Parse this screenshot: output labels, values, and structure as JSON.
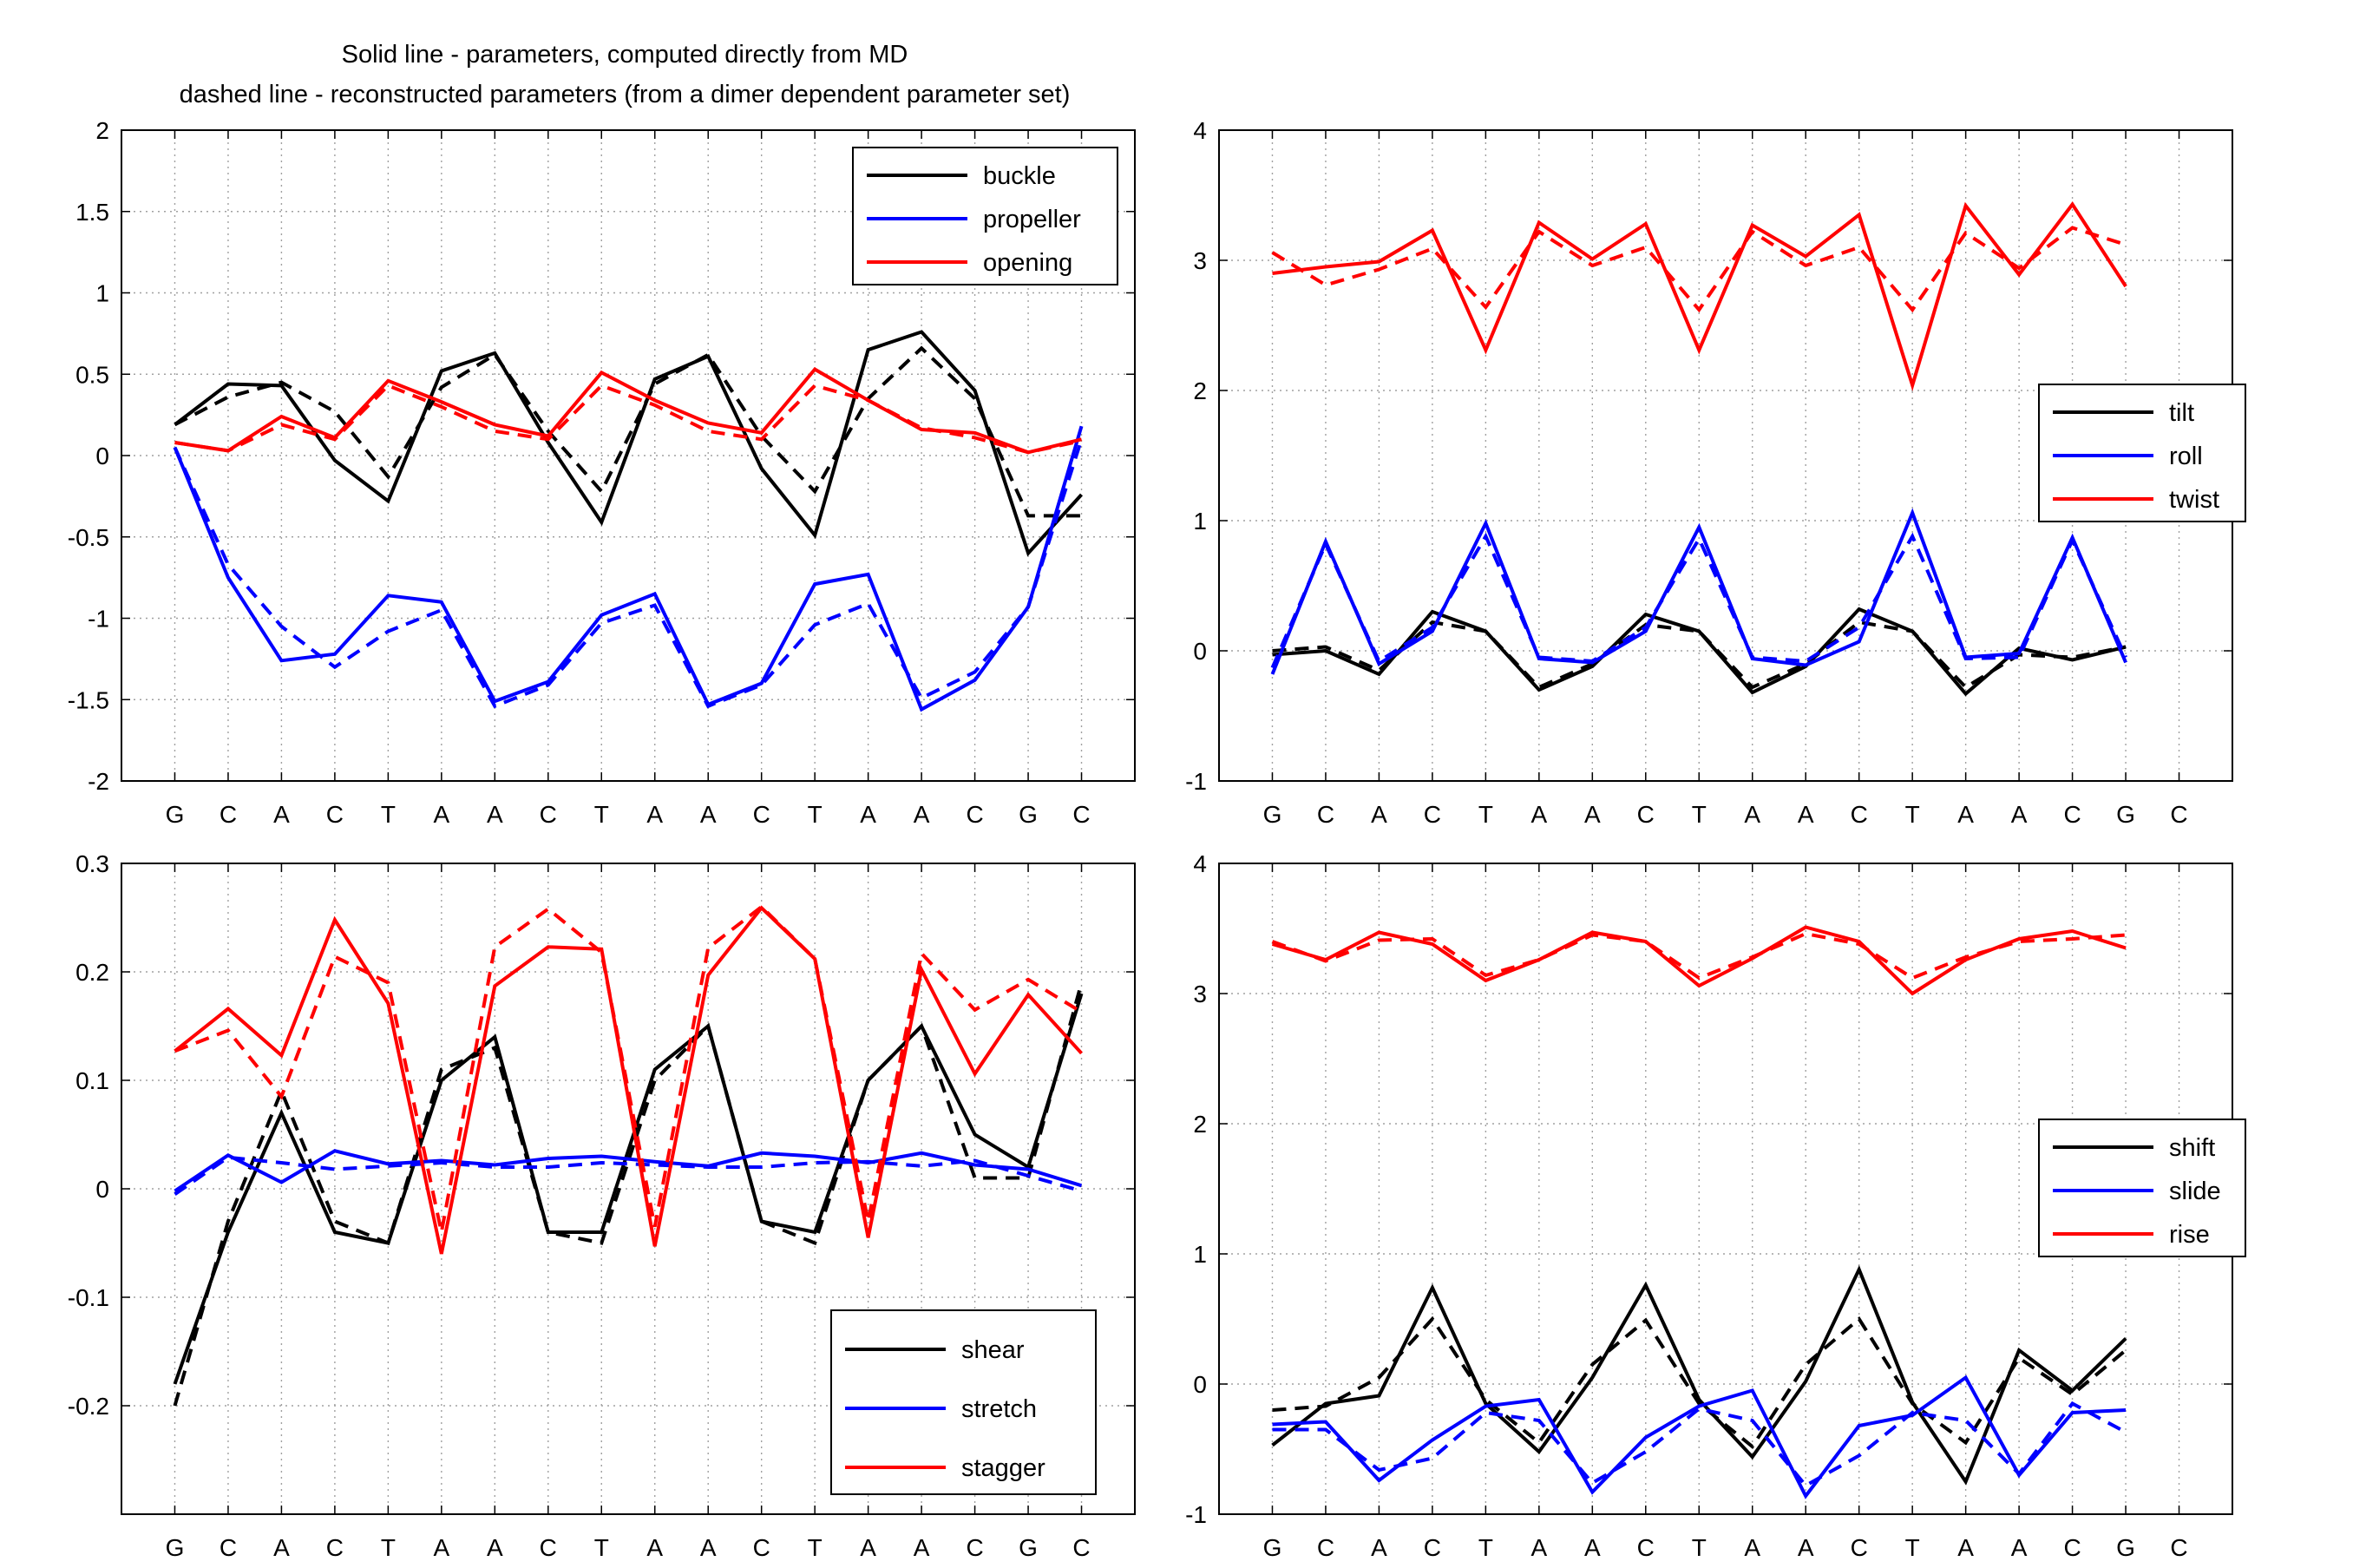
{
  "title_lines": [
    "Solid line - parameters, computed directly from MD",
    "dashed line - reconstructed parameters (from a dimer dependent parameter set)"
  ],
  "sequence": [
    "G",
    "C",
    "A",
    "C",
    "T",
    "A",
    "A",
    "C",
    "T",
    "A",
    "A",
    "C",
    "T",
    "A",
    "A",
    "C",
    "G",
    "C"
  ],
  "colors": {
    "black": "#000000",
    "blue": "#0000ff",
    "red": "#ff0000",
    "grid": "#a0a0a0"
  },
  "chart_data": [
    {
      "type": "line",
      "ylim": [
        -2,
        2
      ],
      "yticks": [
        -2,
        -1.5,
        -1,
        -0.5,
        0,
        0.5,
        1,
        1.5,
        2
      ],
      "yticklabels": [
        "-2",
        "-1.5",
        "-1",
        "-0.5",
        "0",
        "0.5",
        "1",
        "1.5",
        "2"
      ],
      "x": [
        1,
        2,
        3,
        4,
        5,
        6,
        7,
        8,
        9,
        10,
        11,
        12,
        13,
        14,
        15,
        16,
        17,
        18
      ],
      "categories": [
        "G",
        "C",
        "A",
        "C",
        "T",
        "A",
        "A",
        "C",
        "T",
        "A",
        "A",
        "C",
        "T",
        "A",
        "A",
        "C",
        "G",
        "C"
      ],
      "legend": "top-right",
      "grid": true,
      "series": [
        {
          "name": "buckle",
          "color": "#000000",
          "style": "solid",
          "values": [
            0.19,
            0.44,
            0.43,
            -0.03,
            -0.28,
            0.52,
            0.63,
            0.08,
            -0.41,
            0.47,
            0.61,
            -0.08,
            -0.49,
            0.65,
            0.76,
            0.4,
            -0.6,
            -0.24
          ]
        },
        {
          "name": "",
          "color": "#000000",
          "style": "dashed",
          "values": [
            0.19,
            0.36,
            0.45,
            0.27,
            -0.13,
            0.42,
            0.62,
            0.15,
            -0.22,
            0.44,
            0.62,
            0.12,
            -0.22,
            0.35,
            0.66,
            0.35,
            -0.37,
            -0.37
          ]
        },
        {
          "name": "propeller",
          "color": "#0000ff",
          "style": "solid",
          "values": [
            0.05,
            -0.75,
            -1.26,
            -1.22,
            -0.86,
            -0.9,
            -1.51,
            -1.39,
            -0.98,
            -0.85,
            -1.53,
            -1.4,
            -0.79,
            -0.73,
            -1.56,
            -1.38,
            -0.93,
            0.18
          ]
        },
        {
          "name": "",
          "color": "#0000ff",
          "style": "dashed",
          "values": [
            0.05,
            -0.67,
            -1.05,
            -1.3,
            -1.08,
            -0.95,
            -1.54,
            -1.41,
            -1.03,
            -0.92,
            -1.54,
            -1.41,
            -1.04,
            -0.91,
            -1.49,
            -1.33,
            -0.93,
            0.1
          ]
        },
        {
          "name": "opening",
          "color": "#ff0000",
          "style": "solid",
          "values": [
            0.08,
            0.03,
            0.24,
            0.11,
            0.46,
            0.33,
            0.19,
            0.12,
            0.51,
            0.34,
            0.2,
            0.14,
            0.53,
            0.34,
            0.16,
            0.14,
            0.02,
            0.1
          ]
        },
        {
          "name": "",
          "color": "#ff0000",
          "style": "dashed",
          "values": [
            0.08,
            0.03,
            0.19,
            0.1,
            0.43,
            0.3,
            0.15,
            0.1,
            0.43,
            0.31,
            0.15,
            0.1,
            0.43,
            0.34,
            0.17,
            0.11,
            0.02,
            0.09
          ]
        }
      ]
    },
    {
      "type": "line",
      "ylim": [
        -1,
        4
      ],
      "yticks": [
        -1,
        0,
        1,
        2,
        3,
        4
      ],
      "yticklabels": [
        "-1",
        "0",
        "1",
        "2",
        "3",
        "4"
      ],
      "x": [
        1,
        2,
        3,
        4,
        5,
        6,
        7,
        8,
        9,
        10,
        11,
        12,
        13,
        14,
        15,
        16,
        17
      ],
      "categories": [
        "G",
        "C",
        "A",
        "C",
        "T",
        "A",
        "A",
        "C",
        "T",
        "A",
        "A",
        "C",
        "T",
        "A",
        "A",
        "C",
        "G",
        "C"
      ],
      "legend": "right",
      "grid": true,
      "series": [
        {
          "name": "tilt",
          "color": "#000000",
          "style": "solid",
          "values": [
            -0.03,
            0.0,
            -0.18,
            0.3,
            0.15,
            -0.3,
            -0.12,
            0.28,
            0.15,
            -0.32,
            -0.12,
            0.32,
            0.15,
            -0.33,
            0.02,
            -0.07,
            0.03
          ]
        },
        {
          "name": "",
          "color": "#000000",
          "style": "dashed",
          "values": [
            0.0,
            0.03,
            -0.15,
            0.22,
            0.15,
            -0.28,
            -0.1,
            0.2,
            0.15,
            -0.28,
            -0.1,
            0.22,
            0.15,
            -0.28,
            -0.03,
            -0.05,
            0.03
          ]
        },
        {
          "name": "roll",
          "color": "#0000ff",
          "style": "solid",
          "values": [
            -0.18,
            0.84,
            -0.1,
            0.15,
            0.98,
            -0.06,
            -0.09,
            0.15,
            0.95,
            -0.06,
            -0.11,
            0.07,
            1.06,
            -0.05,
            -0.02,
            0.87,
            -0.09
          ]
        },
        {
          "name": "",
          "color": "#0000ff",
          "style": "dashed",
          "values": [
            -0.13,
            0.82,
            -0.08,
            0.18,
            0.88,
            -0.05,
            -0.08,
            0.18,
            0.86,
            -0.05,
            -0.08,
            0.18,
            0.88,
            -0.06,
            -0.05,
            0.85,
            -0.05
          ]
        },
        {
          "name": "twist",
          "color": "#ff0000",
          "style": "solid",
          "values": [
            2.9,
            2.95,
            2.99,
            3.23,
            2.31,
            3.29,
            3.01,
            3.28,
            2.31,
            3.27,
            3.03,
            3.35,
            2.04,
            3.42,
            2.89,
            3.43,
            2.8
          ]
        },
        {
          "name": "",
          "color": "#ff0000",
          "style": "dashed",
          "values": [
            3.06,
            2.81,
            2.93,
            3.09,
            2.64,
            3.22,
            2.96,
            3.1,
            2.62,
            3.22,
            2.96,
            3.1,
            2.62,
            3.21,
            2.94,
            3.25,
            3.12
          ]
        }
      ]
    },
    {
      "type": "line",
      "ylim": [
        -0.3,
        0.3
      ],
      "yticks": [
        -0.2,
        -0.1,
        0,
        0.1,
        0.2,
        0.3
      ],
      "yticklabels": [
        "-0.2",
        "-0.1",
        "0",
        "0.1",
        "0.2",
        "0.3"
      ],
      "x": [
        1,
        2,
        3,
        4,
        5,
        6,
        7,
        8,
        9,
        10,
        11,
        12,
        13,
        14,
        15,
        16,
        17,
        18
      ],
      "categories": [
        "G",
        "C",
        "A",
        "C",
        "T",
        "A",
        "A",
        "C",
        "T",
        "A",
        "A",
        "C",
        "T",
        "A",
        "A",
        "C",
        "G",
        "C"
      ],
      "legend": "bottom-right",
      "grid": true,
      "series": [
        {
          "name": "shear",
          "color": "#000000",
          "style": "solid",
          "values": [
            -0.18,
            -0.04,
            0.07,
            -0.04,
            -0.05,
            0.1,
            0.14,
            -0.04,
            -0.04,
            0.11,
            0.15,
            -0.03,
            -0.04,
            0.1,
            0.15,
            0.05,
            0.02,
            0.18
          ]
        },
        {
          "name": "",
          "color": "#000000",
          "style": "dashed",
          "values": [
            -0.2,
            -0.03,
            0.09,
            -0.03,
            -0.05,
            0.11,
            0.13,
            -0.04,
            -0.05,
            0.1,
            0.15,
            -0.03,
            -0.05,
            0.1,
            0.15,
            0.01,
            0.01,
            0.19
          ]
        },
        {
          "name": "stretch",
          "color": "#0000ff",
          "style": "solid",
          "values": [
            -0.002,
            0.031,
            0.006,
            0.035,
            0.023,
            0.026,
            0.022,
            0.028,
            0.03,
            0.025,
            0.021,
            0.033,
            0.03,
            0.024,
            0.033,
            0.022,
            0.018,
            0.003
          ]
        },
        {
          "name": "",
          "color": "#0000ff",
          "style": "dashed",
          "values": [
            -0.005,
            0.029,
            0.024,
            0.018,
            0.021,
            0.024,
            0.02,
            0.02,
            0.024,
            0.022,
            0.02,
            0.02,
            0.024,
            0.025,
            0.021,
            0.026,
            0.012,
            -0.002
          ]
        },
        {
          "name": "stagger",
          "color": "#ff0000",
          "style": "solid",
          "values": [
            0.127,
            0.166,
            0.123,
            0.248,
            0.171,
            -0.06,
            0.187,
            0.223,
            0.221,
            -0.053,
            0.197,
            0.259,
            0.212,
            -0.045,
            0.202,
            0.106,
            0.179,
            0.125
          ]
        },
        {
          "name": "",
          "color": "#ff0000",
          "style": "dashed",
          "values": [
            0.127,
            0.146,
            0.085,
            0.214,
            0.19,
            -0.04,
            0.223,
            0.258,
            0.218,
            -0.035,
            0.222,
            0.26,
            0.212,
            -0.03,
            0.217,
            0.165,
            0.193,
            0.163
          ]
        }
      ]
    },
    {
      "type": "line",
      "ylim": [
        -1,
        4
      ],
      "yticks": [
        -1,
        0,
        1,
        2,
        3,
        4
      ],
      "yticklabels": [
        "-1",
        "0",
        "1",
        "2",
        "3",
        "4"
      ],
      "x": [
        1,
        2,
        3,
        4,
        5,
        6,
        7,
        8,
        9,
        10,
        11,
        12,
        13,
        14,
        15,
        16,
        17
      ],
      "categories": [
        "G",
        "C",
        "A",
        "C",
        "T",
        "A",
        "A",
        "C",
        "T",
        "A",
        "A",
        "C",
        "T",
        "A",
        "A",
        "C",
        "G",
        "C"
      ],
      "legend": "right",
      "grid": true,
      "series": [
        {
          "name": "shift",
          "color": "#000000",
          "style": "solid",
          "values": [
            -0.47,
            -0.15,
            -0.09,
            0.74,
            -0.15,
            -0.52,
            0.05,
            0.76,
            -0.12,
            -0.56,
            0.02,
            0.88,
            -0.14,
            -0.75,
            0.26,
            -0.05,
            0.35
          ]
        },
        {
          "name": "",
          "color": "#000000",
          "style": "dashed",
          "values": [
            -0.2,
            -0.17,
            0.05,
            0.5,
            -0.12,
            -0.45,
            0.15,
            0.49,
            -0.15,
            -0.48,
            0.15,
            0.5,
            -0.15,
            -0.45,
            0.2,
            -0.08,
            0.26
          ]
        },
        {
          "name": "slide",
          "color": "#0000ff",
          "style": "solid",
          "values": [
            -0.31,
            -0.29,
            -0.74,
            -0.43,
            -0.17,
            -0.12,
            -0.83,
            -0.41,
            -0.17,
            -0.05,
            -0.86,
            -0.32,
            -0.24,
            0.05,
            -0.7,
            -0.22,
            -0.2
          ]
        },
        {
          "name": "",
          "color": "#0000ff",
          "style": "dashed",
          "values": [
            -0.35,
            -0.35,
            -0.66,
            -0.57,
            -0.22,
            -0.28,
            -0.76,
            -0.52,
            -0.19,
            -0.28,
            -0.78,
            -0.55,
            -0.22,
            -0.28,
            -0.69,
            -0.15,
            -0.37
          ]
        },
        {
          "name": "rise",
          "color": "#ff0000",
          "style": "solid",
          "values": [
            3.38,
            3.26,
            3.47,
            3.38,
            3.1,
            3.26,
            3.47,
            3.4,
            3.06,
            3.27,
            3.51,
            3.4,
            3.0,
            3.26,
            3.42,
            3.48,
            3.35
          ]
        },
        {
          "name": "",
          "color": "#ff0000",
          "style": "dashed",
          "values": [
            3.4,
            3.25,
            3.41,
            3.42,
            3.14,
            3.26,
            3.45,
            3.4,
            3.12,
            3.28,
            3.46,
            3.38,
            3.12,
            3.28,
            3.4,
            3.42,
            3.45
          ]
        }
      ]
    }
  ]
}
